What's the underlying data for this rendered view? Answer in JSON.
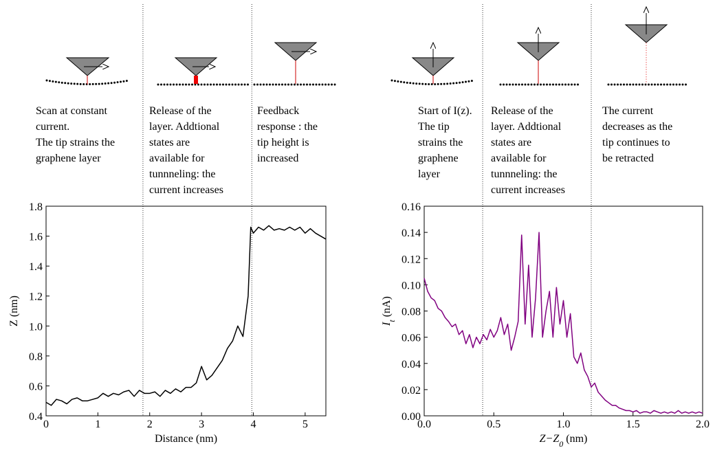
{
  "chart_data": [
    {
      "type": "line",
      "annotations": [
        [
          "Scan at constant",
          "current.",
          "The tip strains the",
          "graphene layer"
        ],
        [
          "Release of the",
          "layer. Addtional",
          "states are",
          "available for",
          "tunnneling: the",
          "current increases"
        ],
        [
          "Feedback",
          "response : the",
          "tip height is",
          "increased"
        ]
      ],
      "xlabel": [
        "Distance (nm)"
      ],
      "ylabel": [
        "Z (nm)"
      ],
      "xlim": [
        0,
        5.4
      ],
      "ylim": [
        0.4,
        1.8
      ],
      "xticks": [
        0,
        1,
        2,
        3,
        4,
        5
      ],
      "yticks": [
        0.4,
        0.6,
        0.8,
        {
          "value": 1,
          "label": "1.0"
        },
        1.2,
        1.4,
        1.6,
        1.8
      ],
      "vlines": [
        1.87,
        3.97
      ],
      "series": [
        {
          "color": "#000000",
          "x": [
            0,
            0.1,
            0.2,
            0.3,
            0.4,
            0.5,
            0.6,
            0.7,
            0.8,
            0.9,
            1,
            1.1,
            1.2,
            1.3,
            1.4,
            1.5,
            1.6,
            1.7,
            1.8,
            1.9,
            2,
            2.1,
            2.2,
            2.3,
            2.4,
            2.5,
            2.6,
            2.7,
            2.8,
            2.9,
            3,
            3.1,
            3.2,
            3.3,
            3.4,
            3.5,
            3.6,
            3.7,
            3.8,
            3.9,
            3.95,
            4,
            4.1,
            4.2,
            4.3,
            4.4,
            4.5,
            4.6,
            4.7,
            4.8,
            4.9,
            5,
            5.1,
            5.2,
            5.3,
            5.4
          ],
          "values": [
            0.49,
            0.47,
            0.51,
            0.5,
            0.48,
            0.51,
            0.52,
            0.5,
            0.5,
            0.51,
            0.52,
            0.55,
            0.53,
            0.55,
            0.54,
            0.56,
            0.57,
            0.53,
            0.57,
            0.55,
            0.55,
            0.56,
            0.53,
            0.57,
            0.55,
            0.58,
            0.56,
            0.59,
            0.59,
            0.62,
            0.73,
            0.64,
            0.67,
            0.72,
            0.77,
            0.85,
            0.9,
            1.0,
            0.93,
            1.2,
            1.66,
            1.62,
            1.66,
            1.64,
            1.67,
            1.64,
            1.65,
            1.64,
            1.66,
            1.64,
            1.66,
            1.62,
            1.65,
            1.62,
            1.6,
            1.58
          ]
        }
      ]
    },
    {
      "type": "line",
      "annotations": [
        [
          "Start of I(z).",
          "The tip",
          "strains the",
          "graphene",
          "layer"
        ],
        [
          "Release of the",
          "layer. Addtional",
          "states are",
          "available for",
          "tunnneling: the",
          "current increases"
        ],
        [
          "The current",
          "decreases as the",
          "tip continues to",
          "be retracted"
        ]
      ],
      "xlabel": [
        "Z−Z",
        "0",
        " (nm)"
      ],
      "ylabel": [
        "I",
        "t",
        " (nA)"
      ],
      "xlim": [
        0,
        2
      ],
      "ylim": [
        0,
        0.16
      ],
      "xticks": [
        {
          "value": 0,
          "label": "0.0"
        },
        0.5,
        {
          "value": 1,
          "label": "1.0"
        },
        1.5,
        {
          "value": 2,
          "label": "2.0"
        }
      ],
      "yticks": [
        {
          "value": 0,
          "label": "0.00"
        },
        0.02,
        0.04,
        0.06,
        0.08,
        {
          "value": 0.1,
          "label": "0.10"
        },
        0.12,
        0.14,
        0.16
      ],
      "vlines": [
        0.42,
        1.2
      ],
      "series": [
        {
          "color": "#800080",
          "x": [
            0,
            0.025,
            0.05,
            0.075,
            0.1,
            0.125,
            0.15,
            0.175,
            0.2,
            0.225,
            0.25,
            0.275,
            0.3,
            0.325,
            0.35,
            0.375,
            0.4,
            0.425,
            0.45,
            0.475,
            0.5,
            0.525,
            0.55,
            0.575,
            0.6,
            0.625,
            0.65,
            0.675,
            0.7,
            0.725,
            0.75,
            0.775,
            0.8,
            0.825,
            0.85,
            0.875,
            0.9,
            0.925,
            0.95,
            0.975,
            1,
            1.025,
            1.05,
            1.075,
            1.1,
            1.125,
            1.15,
            1.175,
            1.2,
            1.225,
            1.25,
            1.275,
            1.3,
            1.325,
            1.35,
            1.375,
            1.4,
            1.425,
            1.45,
            1.475,
            1.5,
            1.525,
            1.55,
            1.575,
            1.6,
            1.625,
            1.65,
            1.675,
            1.7,
            1.725,
            1.75,
            1.775,
            1.8,
            1.825,
            1.85,
            1.875,
            1.9,
            1.925,
            1.95,
            1.975,
            2
          ],
          "values": [
            0.105,
            0.095,
            0.09,
            0.088,
            0.082,
            0.08,
            0.075,
            0.072,
            0.068,
            0.07,
            0.062,
            0.065,
            0.055,
            0.062,
            0.052,
            0.06,
            0.055,
            0.062,
            0.058,
            0.066,
            0.06,
            0.065,
            0.075,
            0.062,
            0.07,
            0.05,
            0.06,
            0.072,
            0.138,
            0.07,
            0.115,
            0.06,
            0.09,
            0.14,
            0.06,
            0.08,
            0.095,
            0.06,
            0.098,
            0.07,
            0.088,
            0.06,
            0.078,
            0.045,
            0.04,
            0.048,
            0.035,
            0.03,
            0.022,
            0.025,
            0.018,
            0.015,
            0.012,
            0.01,
            0.008,
            0.008,
            0.006,
            0.005,
            0.004,
            0.004,
            0.003,
            0.004,
            0.002,
            0.003,
            0.003,
            0.002,
            0.004,
            0.003,
            0.002,
            0.003,
            0.002,
            0.003,
            0.002,
            0.004,
            0.002,
            0.003,
            0.002,
            0.003,
            0.002,
            0.003,
            0.002
          ]
        }
      ]
    }
  ]
}
